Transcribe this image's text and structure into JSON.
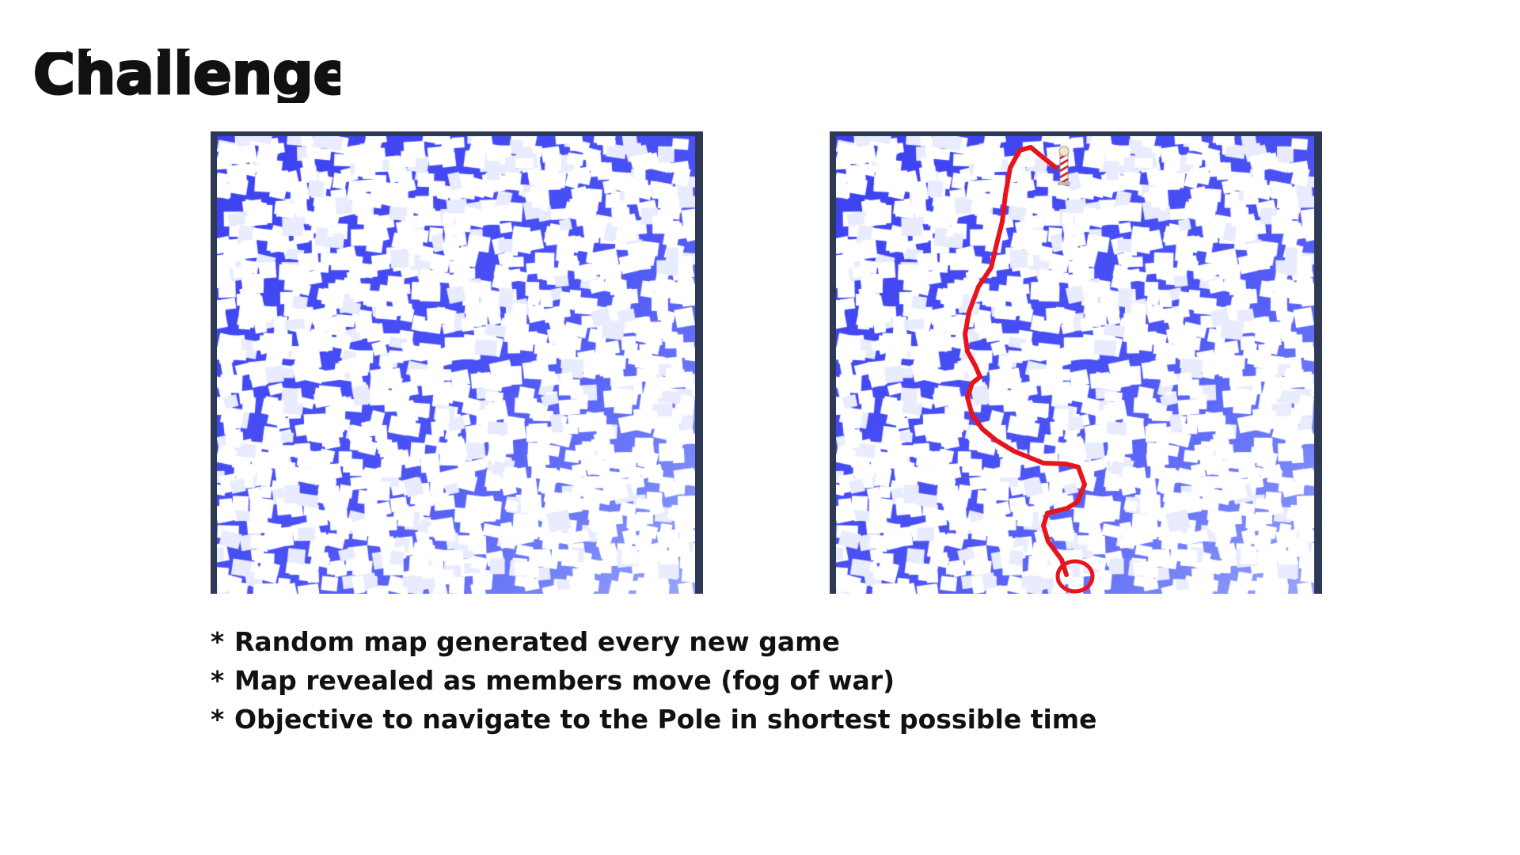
{
  "slide": {
    "title": "Challenge",
    "bullets": [
      {
        "marker": "*",
        "text": "Random map generated every new game"
      },
      {
        "marker": "*",
        "text": "Map revealed as members move (fog of war)"
      },
      {
        "marker": "*",
        "text": "Objective to navigate to the Pole in shortest possible time"
      }
    ]
  },
  "maps": {
    "left": {
      "name": "random-ice-map"
    },
    "right": {
      "name": "ice-map-with-route",
      "route_color": "#e8141c",
      "pole_icon": "barber-pole-icon",
      "start_marker": "red-circle"
    }
  },
  "colors": {
    "water": "#3b40f0",
    "ice": "#ffffff",
    "frame": "#2e3a55",
    "route": "#e8141c"
  }
}
